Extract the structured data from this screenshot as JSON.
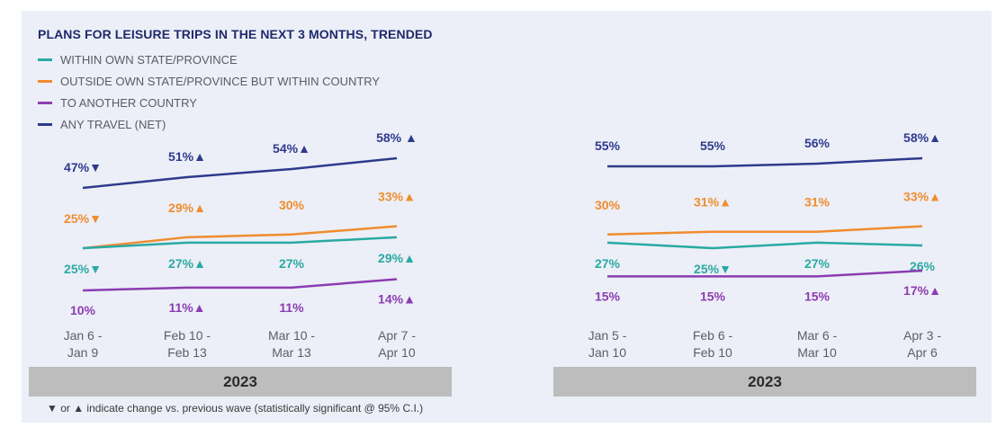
{
  "title": "PLANS FOR LEISURE TRIPS IN THE NEXT 3 MONTHS, TRENDED",
  "legend": [
    {
      "label": "WITHIN OWN STATE/PROVINCE",
      "color": "#2aa9a4"
    },
    {
      "label": "OUTSIDE OWN STATE/PROVINCE BUT WITHIN COUNTRY",
      "color": "#f08c2e"
    },
    {
      "label": "TO ANOTHER COUNTRY",
      "color": "#8c3cb1"
    },
    {
      "label": "ANY TRAVEL (NET)",
      "color": "#2e3a8c"
    }
  ],
  "chart_data": [
    {
      "type": "line",
      "title": "",
      "categories": [
        [
          "Jan 6 -",
          "Jan 9"
        ],
        [
          "Feb 10 -",
          "Feb 13"
        ],
        [
          "Mar 10 -",
          "Mar 13"
        ],
        [
          "Apr 7 -",
          "Apr 10"
        ]
      ],
      "year_label": "2023",
      "ylim": [
        0,
        70
      ],
      "series": [
        {
          "name": "ANY TRAVEL (NET)",
          "color": "#2e3a8c",
          "values": [
            47,
            51,
            54,
            58
          ],
          "labels": [
            "47%▼",
            "51%▲",
            "54%▲",
            "58% ▲"
          ]
        },
        {
          "name": "OUTSIDE OWN STATE/PROVINCE BUT WITHIN COUNTRY",
          "color": "#f08c2e",
          "values": [
            25,
            29,
            30,
            33
          ],
          "labels": [
            "25%▼",
            "29%▲",
            "30%",
            "33%▲"
          ]
        },
        {
          "name": "WITHIN OWN STATE/PROVINCE",
          "color": "#2aa9a4",
          "values": [
            25,
            27,
            27,
            29
          ],
          "labels": [
            "25%▼",
            "27%▲",
            "27%",
            "29%▲"
          ]
        },
        {
          "name": "TO ANOTHER COUNTRY",
          "color": "#8c3cb1",
          "values": [
            10,
            11,
            11,
            14
          ],
          "labels": [
            "10%",
            "11%▲",
            "11%",
            "14%▲"
          ]
        }
      ]
    },
    {
      "type": "line",
      "title": "",
      "categories": [
        [
          "Jan 5 -",
          "Jan 10"
        ],
        [
          "Feb 6 -",
          "Feb 10"
        ],
        [
          "Mar 6 -",
          "Mar 10"
        ],
        [
          "Apr 3 -",
          "Apr 6"
        ]
      ],
      "year_label": "2023",
      "ylim": [
        0,
        70
      ],
      "series": [
        {
          "name": "ANY TRAVEL (NET)",
          "color": "#2e3a8c",
          "values": [
            55,
            55,
            56,
            58
          ],
          "labels": [
            "55%",
            "55%",
            "56%",
            "58%▲"
          ]
        },
        {
          "name": "OUTSIDE OWN STATE/PROVINCE BUT WITHIN COUNTRY",
          "color": "#f08c2e",
          "values": [
            30,
            31,
            31,
            33
          ],
          "labels": [
            "30%",
            "31%▲",
            "31%",
            "33%▲"
          ]
        },
        {
          "name": "WITHIN OWN STATE/PROVINCE",
          "color": "#2aa9a4",
          "values": [
            27,
            25,
            27,
            26
          ],
          "labels": [
            "27%",
            "25%▼",
            "27%",
            "26%"
          ]
        },
        {
          "name": "TO ANOTHER COUNTRY",
          "color": "#8c3cb1",
          "values": [
            15,
            15,
            15,
            17
          ],
          "labels": [
            "15%",
            "15%",
            "15%",
            "17%▲"
          ]
        }
      ]
    }
  ],
  "footnote": "▼ or ▲ indicate change vs. previous wave (statistically significant @ 95% C.I.)"
}
